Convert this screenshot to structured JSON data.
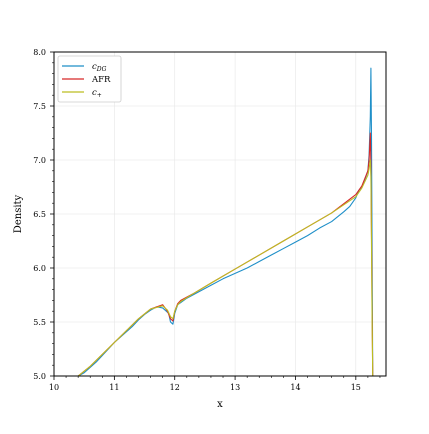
{
  "chart_data": {
    "type": "line",
    "title": "",
    "xlabel": "x",
    "ylabel": "Density",
    "xlim": [
      10.0,
      15.5
    ],
    "ylim": [
      5.0,
      8.0
    ],
    "xticks": [
      "10",
      "11",
      "12",
      "13",
      "14",
      "15"
    ],
    "yticks": [
      "5.0",
      "5.5",
      "6.0",
      "6.5",
      "7.0",
      "7.5",
      "8.0"
    ],
    "grid": true,
    "legend_position": "top-left",
    "series": [
      {
        "name": "c_DG",
        "color": "#1f8fc8",
        "x": [
          10.4,
          10.5,
          10.6,
          10.7,
          10.8,
          10.9,
          11.0,
          11.1,
          11.2,
          11.3,
          11.4,
          11.5,
          11.6,
          11.7,
          11.8,
          11.9,
          11.93,
          11.97,
          12.0,
          12.05,
          12.1,
          12.2,
          12.4,
          12.6,
          12.8,
          13.0,
          13.2,
          13.4,
          13.6,
          13.8,
          14.0,
          14.2,
          14.4,
          14.6,
          14.8,
          14.9,
          15.0,
          15.05,
          15.1,
          15.15,
          15.2,
          15.22,
          15.24,
          15.25,
          15.26,
          15.27,
          15.28
        ],
        "y": [
          5.0,
          5.03,
          5.08,
          5.13,
          5.19,
          5.25,
          5.31,
          5.36,
          5.41,
          5.46,
          5.52,
          5.57,
          5.61,
          5.64,
          5.63,
          5.58,
          5.5,
          5.48,
          5.58,
          5.66,
          5.68,
          5.72,
          5.78,
          5.84,
          5.9,
          5.95,
          6.0,
          6.06,
          6.12,
          6.18,
          6.24,
          6.3,
          6.37,
          6.43,
          6.52,
          6.57,
          6.65,
          6.72,
          6.75,
          6.82,
          6.9,
          7.05,
          7.4,
          7.85,
          7.2,
          6.1,
          5.0
        ]
      },
      {
        "name": "AFR",
        "color": "#d62728",
        "x": [
          10.4,
          10.6,
          10.8,
          11.0,
          11.2,
          11.4,
          11.6,
          11.8,
          11.88,
          11.93,
          11.97,
          12.0,
          12.05,
          12.1,
          12.3,
          12.6,
          13.0,
          13.4,
          13.8,
          14.2,
          14.6,
          15.0,
          15.1,
          15.2,
          15.22,
          15.24,
          15.25,
          15.26,
          15.27,
          15.28
        ],
        "y": [
          5.0,
          5.09,
          5.2,
          5.31,
          5.42,
          5.53,
          5.62,
          5.66,
          5.6,
          5.53,
          5.51,
          5.6,
          5.67,
          5.7,
          5.76,
          5.86,
          5.99,
          6.12,
          6.25,
          6.38,
          6.51,
          6.68,
          6.76,
          6.9,
          7.0,
          7.25,
          6.95,
          6.3,
          5.6,
          5.0
        ]
      },
      {
        "name": "c_+",
        "color": "#bcbd22",
        "x": [
          10.4,
          10.6,
          10.8,
          11.0,
          11.2,
          11.4,
          11.6,
          11.8,
          11.88,
          11.93,
          11.97,
          12.0,
          12.05,
          12.1,
          12.3,
          12.6,
          13.0,
          13.4,
          13.8,
          14.2,
          14.6,
          15.0,
          15.1,
          15.2,
          15.22,
          15.24,
          15.25,
          15.26,
          15.27,
          15.28
        ],
        "y": [
          5.0,
          5.09,
          5.2,
          5.31,
          5.42,
          5.53,
          5.62,
          5.65,
          5.61,
          5.55,
          5.53,
          5.6,
          5.66,
          5.69,
          5.76,
          5.86,
          5.99,
          6.12,
          6.25,
          6.38,
          6.51,
          6.66,
          6.74,
          6.86,
          6.92,
          7.0,
          6.85,
          6.2,
          5.5,
          5.0
        ]
      }
    ]
  }
}
